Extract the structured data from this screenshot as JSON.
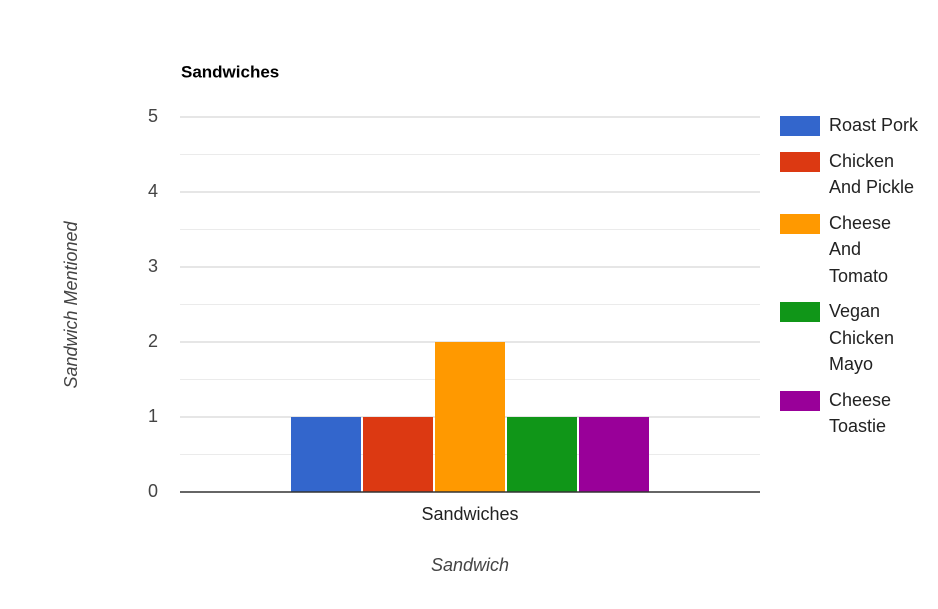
{
  "chart_data": {
    "type": "bar",
    "title": "Sandwiches",
    "x_label": "Sandwich",
    "y_label": "Sandwich Mentioned",
    "categories": [
      "Sandwiches"
    ],
    "series": [
      {
        "name": "Roast Pork",
        "color": "#3366cc",
        "values": [
          1
        ]
      },
      {
        "name": "Chicken And Pickle",
        "color": "#dc3912",
        "values": [
          1
        ]
      },
      {
        "name": "Cheese And Tomato",
        "color": "#ff9900",
        "values": [
          2
        ]
      },
      {
        "name": "Vegan Chicken Mayo",
        "color": "#109618",
        "values": [
          1
        ]
      },
      {
        "name": "Cheese Toastie",
        "color": "#990099",
        "values": [
          1
        ]
      }
    ],
    "ylim": [
      0,
      5
    ],
    "yticks": [
      0,
      1,
      2,
      3,
      4,
      5
    ],
    "grid": true,
    "minor_grid": true,
    "legend": "right"
  }
}
